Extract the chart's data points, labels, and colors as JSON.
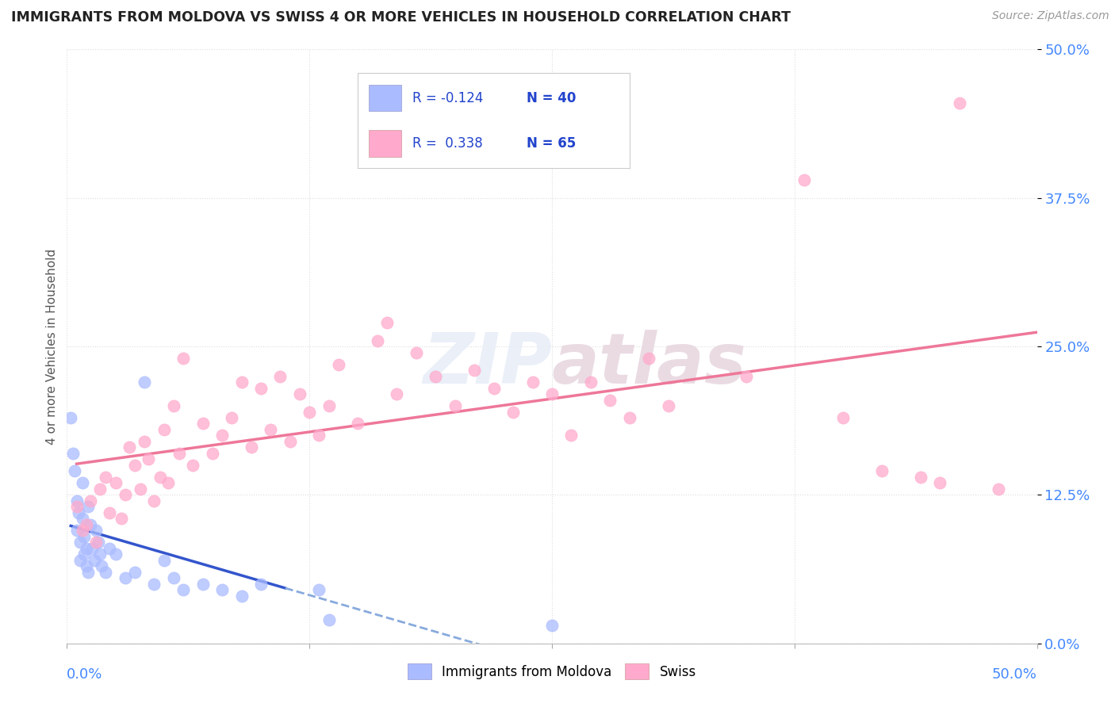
{
  "title": "IMMIGRANTS FROM MOLDOVA VS SWISS 4 OR MORE VEHICLES IN HOUSEHOLD CORRELATION CHART",
  "source": "Source: ZipAtlas.com",
  "ylabel": "4 or more Vehicles in Household",
  "ytick_values": [
    0.0,
    12.5,
    25.0,
    37.5,
    50.0
  ],
  "xlim": [
    0.0,
    50.0
  ],
  "ylim": [
    0.0,
    50.0
  ],
  "legend_moldova": "Immigrants from Moldova",
  "legend_swiss": "Swiss",
  "r_moldova": -0.124,
  "n_moldova": 40,
  "r_swiss": 0.338,
  "n_swiss": 65,
  "color_moldova": "#aabbff",
  "color_swiss": "#ffaacc",
  "trendline_moldova_solid": "#3355cc",
  "trendline_moldova_dashed": "#88aadd",
  "trendline_swiss_color": "#ee7799",
  "moldova_points": [
    [
      0.2,
      19.0
    ],
    [
      0.3,
      16.0
    ],
    [
      0.4,
      14.5
    ],
    [
      0.5,
      12.0
    ],
    [
      0.5,
      9.5
    ],
    [
      0.6,
      11.0
    ],
    [
      0.7,
      8.5
    ],
    [
      0.7,
      7.0
    ],
    [
      0.8,
      13.5
    ],
    [
      0.8,
      10.5
    ],
    [
      0.9,
      9.0
    ],
    [
      0.9,
      7.5
    ],
    [
      1.0,
      8.0
    ],
    [
      1.0,
      6.5
    ],
    [
      1.1,
      11.5
    ],
    [
      1.1,
      6.0
    ],
    [
      1.2,
      10.0
    ],
    [
      1.3,
      8.0
    ],
    [
      1.4,
      7.0
    ],
    [
      1.5,
      9.5
    ],
    [
      1.6,
      8.5
    ],
    [
      1.7,
      7.5
    ],
    [
      1.8,
      6.5
    ],
    [
      2.0,
      6.0
    ],
    [
      2.2,
      8.0
    ],
    [
      2.5,
      7.5
    ],
    [
      3.0,
      5.5
    ],
    [
      3.5,
      6.0
    ],
    [
      4.0,
      22.0
    ],
    [
      4.5,
      5.0
    ],
    [
      5.0,
      7.0
    ],
    [
      5.5,
      5.5
    ],
    [
      6.0,
      4.5
    ],
    [
      7.0,
      5.0
    ],
    [
      8.0,
      4.5
    ],
    [
      9.0,
      4.0
    ],
    [
      10.0,
      5.0
    ],
    [
      13.0,
      4.5
    ],
    [
      13.5,
      2.0
    ],
    [
      25.0,
      1.5
    ]
  ],
  "swiss_points": [
    [
      0.5,
      11.5
    ],
    [
      0.8,
      9.5
    ],
    [
      1.0,
      10.0
    ],
    [
      1.2,
      12.0
    ],
    [
      1.5,
      8.5
    ],
    [
      1.7,
      13.0
    ],
    [
      2.0,
      14.0
    ],
    [
      2.2,
      11.0
    ],
    [
      2.5,
      13.5
    ],
    [
      2.8,
      10.5
    ],
    [
      3.0,
      12.5
    ],
    [
      3.2,
      16.5
    ],
    [
      3.5,
      15.0
    ],
    [
      3.8,
      13.0
    ],
    [
      4.0,
      17.0
    ],
    [
      4.2,
      15.5
    ],
    [
      4.5,
      12.0
    ],
    [
      4.8,
      14.0
    ],
    [
      5.0,
      18.0
    ],
    [
      5.2,
      13.5
    ],
    [
      5.5,
      20.0
    ],
    [
      5.8,
      16.0
    ],
    [
      6.0,
      24.0
    ],
    [
      6.5,
      15.0
    ],
    [
      7.0,
      18.5
    ],
    [
      7.5,
      16.0
    ],
    [
      8.0,
      17.5
    ],
    [
      8.5,
      19.0
    ],
    [
      9.0,
      22.0
    ],
    [
      9.5,
      16.5
    ],
    [
      10.0,
      21.5
    ],
    [
      10.5,
      18.0
    ],
    [
      11.0,
      22.5
    ],
    [
      11.5,
      17.0
    ],
    [
      12.0,
      21.0
    ],
    [
      12.5,
      19.5
    ],
    [
      13.0,
      17.5
    ],
    [
      13.5,
      20.0
    ],
    [
      14.0,
      23.5
    ],
    [
      15.0,
      18.5
    ],
    [
      16.0,
      25.5
    ],
    [
      16.5,
      27.0
    ],
    [
      17.0,
      21.0
    ],
    [
      18.0,
      24.5
    ],
    [
      19.0,
      22.5
    ],
    [
      20.0,
      20.0
    ],
    [
      21.0,
      23.0
    ],
    [
      22.0,
      21.5
    ],
    [
      23.0,
      19.5
    ],
    [
      24.0,
      22.0
    ],
    [
      25.0,
      21.0
    ],
    [
      26.0,
      17.5
    ],
    [
      27.0,
      22.0
    ],
    [
      28.0,
      20.5
    ],
    [
      29.0,
      19.0
    ],
    [
      30.0,
      24.0
    ],
    [
      31.0,
      20.0
    ],
    [
      35.0,
      22.5
    ],
    [
      38.0,
      39.0
    ],
    [
      40.0,
      19.0
    ],
    [
      42.0,
      14.5
    ],
    [
      44.0,
      14.0
    ],
    [
      45.0,
      13.5
    ],
    [
      46.0,
      45.5
    ],
    [
      48.0,
      13.0
    ]
  ],
  "grid_color": "#dddddd",
  "background_color": "#ffffff"
}
